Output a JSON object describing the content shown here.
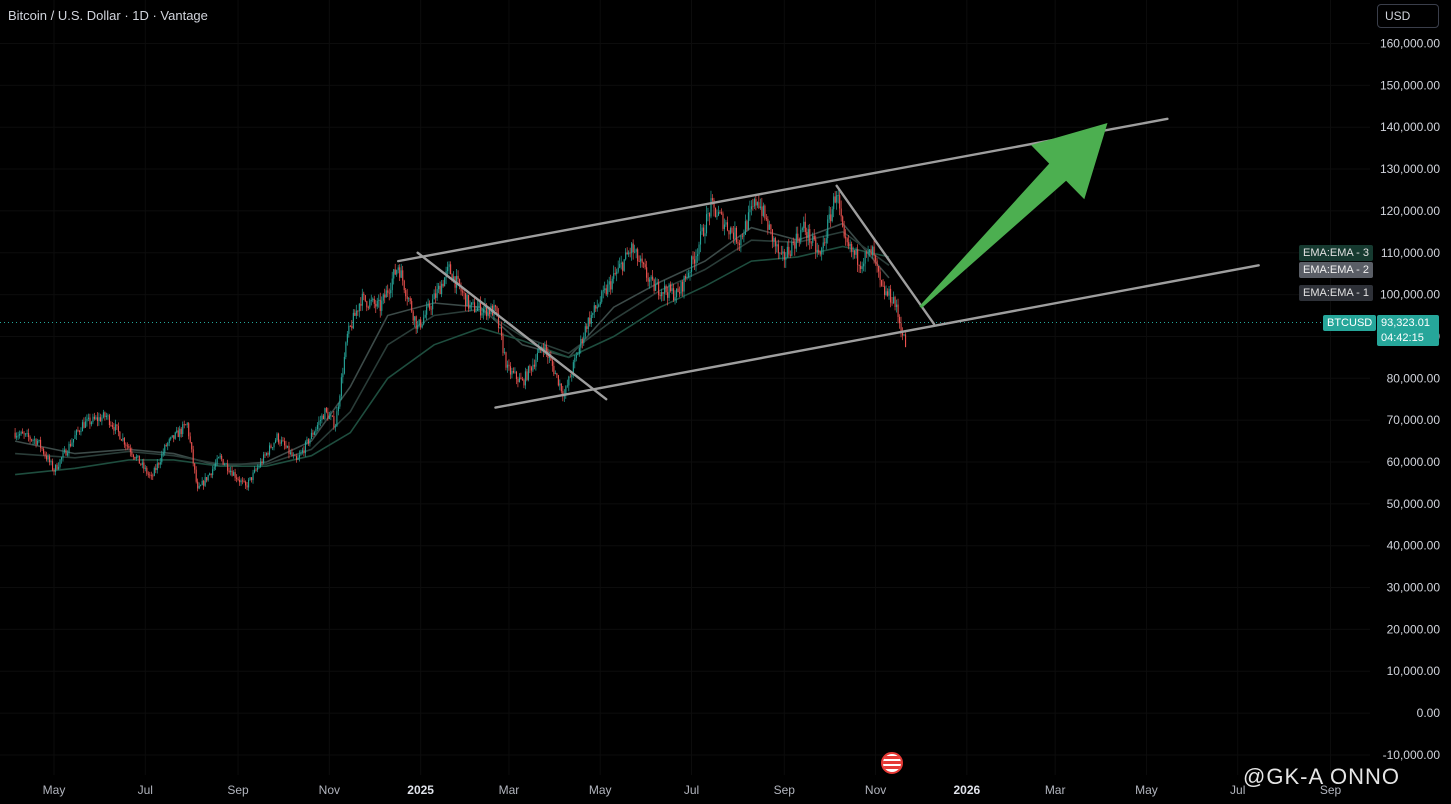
{
  "header": {
    "title": "Bitcoin / U.S. Dollar · 1D · Vantage",
    "currency": "USD"
  },
  "price_tag": {
    "symbol": "BTCUSD",
    "price": "93,323.01",
    "countdown": "04:42:15"
  },
  "ema_tags": [
    "EMA:EMA - 3",
    "EMA:EMA - 2",
    "EMA:EMA - 1"
  ],
  "watermark": "@GK-A  ONNO",
  "colors": {
    "background": "#000000",
    "up_candle": "#26a69a",
    "down_candle": "#ef5350",
    "price_line": "#26a69a",
    "trend_lines": "#9e9e9e",
    "arrow": "#4caf50",
    "ema_fast": "#3c4a48",
    "ema_mid": "#2a3c38",
    "ema_slow": "#1e4d3e"
  },
  "chart_data": {
    "type": "candlestick",
    "title": "Bitcoin / U.S. Dollar · 1D · Vantage",
    "x_ticks": [
      "May",
      "Jul",
      "Sep",
      "Nov",
      "2025",
      "Mar",
      "May",
      "Jul",
      "Sep",
      "Nov",
      "2026",
      "Mar",
      "May",
      "Jul",
      "Sep"
    ],
    "y_ticks": [
      "160,000.00",
      "150,000.00",
      "140,000.00",
      "130,000.00",
      "120,000.00",
      "110,000.00",
      "100,000.00",
      "90,000.00",
      "80,000.00",
      "70,000.00",
      "60,000.00",
      "50,000.00",
      "40,000.00",
      "30,000.00",
      "20,000.00",
      "10,000.00",
      "0.00",
      "-10,000.00"
    ],
    "ylim": [
      -10000,
      162000
    ],
    "current_price": 93323.01,
    "price_path": [
      [
        "2024-04-05",
        67000
      ],
      [
        "2024-04-20",
        65000
      ],
      [
        "2024-05-01",
        58000
      ],
      [
        "2024-05-20",
        69000
      ],
      [
        "2024-06-05",
        71000
      ],
      [
        "2024-06-25",
        61000
      ],
      [
        "2024-07-05",
        56000
      ],
      [
        "2024-07-15",
        64000
      ],
      [
        "2024-07-29",
        69000
      ],
      [
        "2024-08-05",
        53000
      ],
      [
        "2024-08-20",
        61000
      ],
      [
        "2024-09-06",
        54000
      ],
      [
        "2024-09-27",
        66000
      ],
      [
        "2024-10-10",
        60000
      ],
      [
        "2024-10-29",
        72000
      ],
      [
        "2024-11-05",
        69000
      ],
      [
        "2024-11-13",
        90000
      ],
      [
        "2024-11-22",
        99000
      ],
      [
        "2024-12-05",
        97000
      ],
      [
        "2024-12-17",
        107000
      ],
      [
        "2024-12-30",
        92000
      ],
      [
        "2025-01-07",
        97000
      ],
      [
        "2025-01-20",
        106000
      ],
      [
        "2025-02-03",
        97000
      ],
      [
        "2025-02-20",
        96000
      ],
      [
        "2025-02-28",
        82000
      ],
      [
        "2025-03-10",
        79000
      ],
      [
        "2025-03-24",
        88000
      ],
      [
        "2025-04-07",
        76000
      ],
      [
        "2025-04-22",
        93000
      ],
      [
        "2025-05-10",
        104000
      ],
      [
        "2025-05-22",
        111000
      ],
      [
        "2025-06-05",
        102000
      ],
      [
        "2025-06-22",
        100000
      ],
      [
        "2025-07-03",
        109000
      ],
      [
        "2025-07-14",
        121000
      ],
      [
        "2025-08-02",
        113000
      ],
      [
        "2025-08-14",
        123000
      ],
      [
        "2025-08-30",
        108000
      ],
      [
        "2025-09-14",
        116000
      ],
      [
        "2025-09-25",
        109000
      ],
      [
        "2025-10-06",
        125000
      ],
      [
        "2025-10-11",
        112000
      ],
      [
        "2025-10-22",
        108000
      ],
      [
        "2025-10-30",
        110000
      ],
      [
        "2025-11-05",
        101000
      ],
      [
        "2025-11-13",
        99000
      ],
      [
        "2025-11-21",
        88000
      ]
    ],
    "ema_series": [
      {
        "name": "EMA:EMA - 1",
        "values": [
          [
            "2024-04-05",
            65000
          ],
          [
            "2024-05-15",
            62000
          ],
          [
            "2024-06-20",
            63000
          ],
          [
            "2024-07-20",
            62000
          ],
          [
            "2024-08-20",
            59000
          ],
          [
            "2024-09-20",
            60000
          ],
          [
            "2024-10-20",
            65000
          ],
          [
            "2024-11-15",
            78000
          ],
          [
            "2024-12-10",
            95000
          ],
          [
            "2025-01-10",
            98000
          ],
          [
            "2025-02-10",
            97000
          ],
          [
            "2025-03-10",
            88000
          ],
          [
            "2025-04-10",
            85000
          ],
          [
            "2025-05-10",
            97000
          ],
          [
            "2025-06-10",
            103000
          ],
          [
            "2025-07-10",
            108000
          ],
          [
            "2025-08-10",
            116000
          ],
          [
            "2025-09-10",
            113000
          ],
          [
            "2025-10-10",
            117000
          ],
          [
            "2025-11-10",
            104000
          ]
        ]
      },
      {
        "name": "EMA:EMA - 2",
        "values": [
          [
            "2024-04-05",
            62000
          ],
          [
            "2024-05-15",
            61000
          ],
          [
            "2024-06-20",
            62500
          ],
          [
            "2024-07-20",
            61500
          ],
          [
            "2024-08-20",
            59500
          ],
          [
            "2024-09-20",
            59500
          ],
          [
            "2024-10-20",
            63000
          ],
          [
            "2024-11-15",
            72000
          ],
          [
            "2024-12-10",
            88000
          ],
          [
            "2025-01-10",
            95000
          ],
          [
            "2025-02-10",
            96500
          ],
          [
            "2025-03-10",
            90000
          ],
          [
            "2025-04-10",
            86000
          ],
          [
            "2025-05-10",
            94000
          ],
          [
            "2025-06-10",
            101000
          ],
          [
            "2025-07-10",
            106000
          ],
          [
            "2025-08-10",
            113000
          ],
          [
            "2025-09-10",
            112500
          ],
          [
            "2025-10-10",
            115000
          ],
          [
            "2025-11-10",
            107000
          ]
        ]
      },
      {
        "name": "EMA:EMA - 3",
        "values": [
          [
            "2024-04-05",
            57000
          ],
          [
            "2024-05-15",
            58500
          ],
          [
            "2024-06-20",
            60500
          ],
          [
            "2024-07-20",
            60500
          ],
          [
            "2024-08-20",
            59000
          ],
          [
            "2024-09-20",
            59000
          ],
          [
            "2024-10-20",
            61500
          ],
          [
            "2024-11-15",
            67000
          ],
          [
            "2024-12-10",
            80000
          ],
          [
            "2025-01-10",
            88000
          ],
          [
            "2025-02-10",
            92000
          ],
          [
            "2025-03-10",
            89000
          ],
          [
            "2025-04-10",
            85000
          ],
          [
            "2025-05-10",
            90000
          ],
          [
            "2025-06-10",
            97000
          ],
          [
            "2025-07-10",
            102000
          ],
          [
            "2025-08-10",
            108000
          ],
          [
            "2025-09-10",
            109000
          ],
          [
            "2025-10-10",
            111500
          ],
          [
            "2025-11-10",
            109000
          ]
        ]
      }
    ],
    "trendlines": [
      {
        "name": "channel-upper",
        "from": [
          "2024-12-17",
          108000
        ],
        "to": [
          "2026-05-15",
          142000
        ]
      },
      {
        "name": "channel-lower",
        "from": [
          "2025-02-20",
          73000
        ],
        "to": [
          "2026-07-15",
          107000
        ]
      },
      {
        "name": "correction-1",
        "from": [
          "2024-12-30",
          110000
        ],
        "to": [
          "2025-05-05",
          75000
        ]
      },
      {
        "name": "correction-2",
        "from": [
          "2025-10-06",
          126000
        ],
        "to": [
          "2025-12-10",
          93000
        ]
      }
    ],
    "projection_arrow": {
      "from": [
        "2025-12-01",
        97000
      ],
      "to": [
        "2026-04-05",
        141000
      ]
    }
  }
}
